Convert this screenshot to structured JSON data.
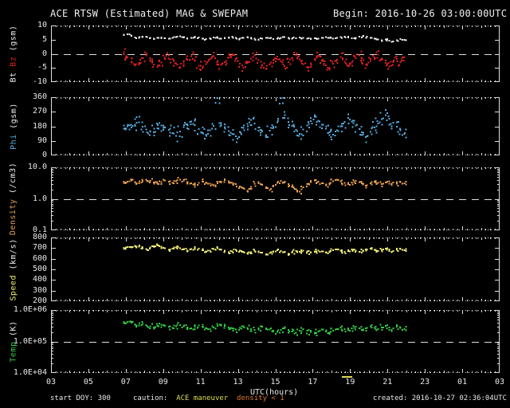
{
  "header": {
    "title": "ACE RTSW (Estimated) MAG & SWEPAM",
    "begin_label": "Begin: 2016-10-26 03:00:00UTC"
  },
  "footer": {
    "start_doy": "start DOY: 300",
    "caution_label": "caution:",
    "caution_maneuver": "ACE maneuver",
    "caution_density": "density < 1",
    "created": "created: 2016-10-27 02:36:04UTC"
  },
  "colors": {
    "background": "#000000",
    "frame": "#e0e0e0",
    "bt": "#eeeeee",
    "bz": "#dd2121",
    "phi": "#55aadd",
    "density": "#e8a050",
    "speed": "#eeee77",
    "temp": "#33cc44",
    "caution_yellow": "#dddd55",
    "caution_orange": "#dd7733"
  },
  "chart_data": {
    "type": "scatter",
    "title": "ACE RTSW (Estimated) MAG & SWEPAM",
    "begin": "2016-10-26 03:00:00UTC",
    "created": "2016-10-27 02:36:04UTC",
    "xlabel": "UTC(hours)",
    "xlim": [
      3,
      27
    ],
    "grid": false,
    "legend_position": "left-axis",
    "xticks": [
      {
        "t": 3,
        "label": "03"
      },
      {
        "t": 5,
        "label": "05"
      },
      {
        "t": 7,
        "label": "07"
      },
      {
        "t": 9,
        "label": "09"
      },
      {
        "t": 11,
        "label": "11"
      },
      {
        "t": 13,
        "label": "13"
      },
      {
        "t": 15,
        "label": "15"
      },
      {
        "t": 17,
        "label": "17"
      },
      {
        "t": 19,
        "label": "19"
      },
      {
        "t": 21,
        "label": "21"
      },
      {
        "t": 23,
        "label": "23"
      },
      {
        "t": 25,
        "label": "01"
      },
      {
        "t": 27,
        "label": "03"
      }
    ],
    "maneuver_marker": {
      "t": 19,
      "color": "#dddd55"
    },
    "t_start": 6.9,
    "t_step": 0.2,
    "panels": [
      {
        "id": "p1",
        "name": "bt-bz",
        "scale": "linear",
        "ylim": [
          -10,
          10
        ],
        "refline": 0,
        "yticks": [
          {
            "v": 10,
            "label": "10"
          },
          {
            "v": 5,
            "label": "5"
          },
          {
            "v": 0,
            "label": "0"
          },
          {
            "v": -5,
            "label": "-5"
          },
          {
            "v": -10,
            "label": "-10"
          }
        ],
        "label_parts": [
          {
            "text": "Bt ",
            "color": "#eeeeee"
          },
          {
            "text": "Bz",
            "color": "#dd2121"
          },
          {
            "text": " (gsm)",
            "color": "#eeeeee"
          }
        ],
        "series": [
          {
            "name": "Bt",
            "color": "#eeeeee",
            "values": [
              6.6,
              6.9,
              6.3,
              5.8,
              5.6,
              5.9,
              6.1,
              5.7,
              5.4,
              5.6,
              5.8,
              5.5,
              5.3,
              5.6,
              5.9,
              6.2,
              5.8,
              5.5,
              5.7,
              6.0,
              5.8,
              5.4,
              5.2,
              5.5,
              5.8,
              5.6,
              5.3,
              5.5,
              5.8,
              6.0,
              5.7,
              5.4,
              5.6,
              5.9,
              5.6,
              5.3,
              5.1,
              5.4,
              5.7,
              5.5,
              5.2,
              5.4,
              5.7,
              5.9,
              5.6,
              5.3,
              5.5,
              5.8,
              5.6,
              5.4,
              5.2,
              5.5,
              5.3,
              5.6,
              5.9,
              5.7,
              5.4,
              5.6,
              5.9,
              6.1,
              5.8,
              5.5,
              5.7,
              6.0,
              6.3,
              6.0,
              5.7,
              5.4,
              5.1,
              4.8,
              5.1,
              4.7,
              4.4,
              4.8,
              5.2,
              4.9
            ]
          },
          {
            "name": "Bz",
            "color": "#dd2121",
            "values": [
              0.5,
              -1.2,
              -2.8,
              -4.1,
              -3.2,
              -1.5,
              -0.3,
              -2.2,
              -3.8,
              -4.6,
              -3.1,
              -1.8,
              -0.6,
              -1.9,
              -3.4,
              -4.8,
              -3.6,
              -2.1,
              -0.8,
              -2.5,
              -4.2,
              -5.1,
              -3.7,
              -2.0,
              -0.9,
              -2.6,
              -4.0,
              -2.9,
              -1.4,
              -0.2,
              -1.8,
              -3.5,
              -4.9,
              -3.3,
              -1.7,
              -0.5,
              -2.3,
              -3.9,
              -5.2,
              -3.8,
              -2.2,
              -1.0,
              -2.7,
              -4.3,
              -3.0,
              -1.6,
              -0.4,
              -2.0,
              -3.6,
              -4.7,
              -3.4,
              -1.9,
              -0.7,
              -2.4,
              -4.1,
              -5.0,
              -3.5,
              -2.1,
              -1.1,
              -2.8,
              -4.4,
              -3.1,
              -1.5,
              -0.6,
              -2.2,
              -3.7,
              -2.6,
              -1.2,
              -0.3,
              -1.7,
              -3.2,
              -4.5,
              -3.0,
              -1.8,
              -2.9,
              -1.3
            ]
          }
        ]
      },
      {
        "id": "p2",
        "name": "phi",
        "scale": "linear",
        "ylim": [
          0,
          360
        ],
        "refline": null,
        "yticks": [
          {
            "v": 360,
            "label": "360"
          },
          {
            "v": 270,
            "label": "270"
          },
          {
            "v": 180,
            "label": "180"
          },
          {
            "v": 90,
            "label": "90"
          },
          {
            "v": 0,
            "label": "0"
          }
        ],
        "label_parts": [
          {
            "text": "Phi",
            "color": "#55aadd"
          },
          {
            "text": " (gsm)",
            "color": "#eeeeee"
          }
        ],
        "series": [
          {
            "name": "Phi",
            "color": "#55aadd",
            "values": [
              165,
              180,
              172,
              190,
              205,
              178,
              160,
              150,
              142,
              168,
              185,
              172,
              158,
              138,
              120,
              148,
              175,
              192,
              210,
              188,
              162,
              140,
              128,
              155,
              182,
              360,
              200,
              175,
              150,
              132,
              118,
              145,
              170,
              195,
              220,
              198,
              172,
              148,
              126,
              152,
              178,
              205,
              355,
              232,
              208,
              182,
              158,
              134,
              160,
              185,
              212,
              238,
              215,
              190,
              165,
              142,
              128,
              155,
              180,
              208,
              232,
              210,
              185,
              162,
              140,
              118,
              146,
              172,
              198,
              225,
              250,
              228,
              202,
              178,
              155,
              132
            ]
          }
        ]
      },
      {
        "id": "p3",
        "name": "density",
        "scale": "log",
        "ylim": [
          0.1,
          10
        ],
        "refline": 1,
        "yticks": [
          {
            "v": 10,
            "label": "10.0"
          },
          {
            "v": 1,
            "label": "1.0"
          },
          {
            "v": 0.1,
            "label": "0.1"
          }
        ],
        "label_parts": [
          {
            "text": "Density",
            "color": "#e8a050"
          },
          {
            "text": " (/cm3)",
            "color": "#eeeeee"
          }
        ],
        "series": [
          {
            "name": "Density",
            "color": "#e8a050",
            "values": [
              3.2,
              3.5,
              3.8,
              3.4,
              3.1,
              3.6,
              4.0,
              3.7,
              3.3,
              3.0,
              3.4,
              3.8,
              3.5,
              3.2,
              3.6,
              4.1,
              3.8,
              3.4,
              3.1,
              2.8,
              3.2,
              3.6,
              3.3,
              3.0,
              2.7,
              3.1,
              3.5,
              3.9,
              3.6,
              3.2,
              2.9,
              2.5,
              2.2,
              1.8,
              2.4,
              3.0,
              3.4,
              2.8,
              2.3,
              1.9,
              2.6,
              3.2,
              3.7,
              3.3,
              2.9,
              2.4,
              2.0,
              1.7,
              2.3,
              2.9,
              3.4,
              3.8,
              3.5,
              3.1,
              2.7,
              3.1,
              3.6,
              4.0,
              3.6,
              3.2,
              2.9,
              3.3,
              3.7,
              3.4,
              3.0,
              2.7,
              3.1,
              3.5,
              3.2,
              2.9,
              3.3,
              3.6,
              3.3,
              3.0,
              3.4,
              3.1
            ]
          }
        ]
      },
      {
        "id": "p4",
        "name": "speed",
        "scale": "linear",
        "ylim": [
          200,
          800
        ],
        "refline": null,
        "yticks": [
          {
            "v": 800,
            "label": "800"
          },
          {
            "v": 700,
            "label": "700"
          },
          {
            "v": 600,
            "label": "600"
          },
          {
            "v": 500,
            "label": "500"
          },
          {
            "v": 400,
            "label": "400"
          },
          {
            "v": 300,
            "label": "300"
          },
          {
            "v": 200,
            "label": "200"
          }
        ],
        "label_parts": [
          {
            "text": "Speed",
            "color": "#eeee77"
          },
          {
            "text": " (km/s)",
            "color": "#eeeeee"
          }
        ],
        "series": [
          {
            "name": "Speed",
            "color": "#eeee77",
            "values": [
              695,
              710,
              705,
              720,
              715,
              700,
              690,
              705,
              718,
              725,
              712,
              698,
              685,
              695,
              708,
              700,
              688,
              676,
              690,
              702,
              695,
              680,
              668,
              678,
              692,
              700,
              688,
              672,
              660,
              670,
              684,
              676,
              664,
              652,
              662,
              676,
              668,
              656,
              644,
              654,
              668,
              680,
              672,
              660,
              648,
              658,
              672,
              664,
              676,
              668,
              656,
              666,
              678,
              670,
              658,
              668,
              680,
              688,
              676,
              664,
              674,
              686,
              678,
              666,
              676,
              688,
              696,
              684,
              672,
              682,
              694,
              686,
              674,
              684,
              692,
              680
            ]
          }
        ]
      },
      {
        "id": "p5",
        "name": "temp",
        "scale": "log",
        "ylim": [
          10000,
          1000000
        ],
        "refline": 100000,
        "yticks": [
          {
            "v": 1000000,
            "label": "1.0E+06"
          },
          {
            "v": 100000,
            "label": "1.0E+05"
          },
          {
            "v": 10000,
            "label": "1.0E+04"
          }
        ],
        "label_parts": [
          {
            "text": "Temp",
            "color": "#33cc44"
          },
          {
            "text": " (K)",
            "color": "#eeeeee"
          }
        ],
        "series": [
          {
            "name": "Temp",
            "color": "#33cc44",
            "values": [
              380000,
              420000,
              390000,
              350000,
              320000,
              360000,
              330000,
              300000,
              280000,
              310000,
              340000,
              310000,
              290000,
              270000,
              300000,
              330000,
              300000,
              280000,
              260000,
              290000,
              320000,
              290000,
              270000,
              250000,
              280000,
              310000,
              340000,
              310000,
              280000,
              260000,
              240000,
              270000,
              300000,
              270000,
              250000,
              230000,
              260000,
              290000,
              260000,
              240000,
              220000,
              200000,
              230000,
              260000,
              230000,
              210000,
              190000,
              220000,
              250000,
              220000,
              200000,
              180000,
              210000,
              240000,
              210000,
              190000,
              220000,
              250000,
              280000,
              250000,
              230000,
              260000,
              290000,
              260000,
              240000,
              270000,
              300000,
              270000,
              250000,
              280000,
              310000,
              280000,
              260000,
              290000,
              270000,
              250000
            ]
          }
        ]
      }
    ]
  }
}
